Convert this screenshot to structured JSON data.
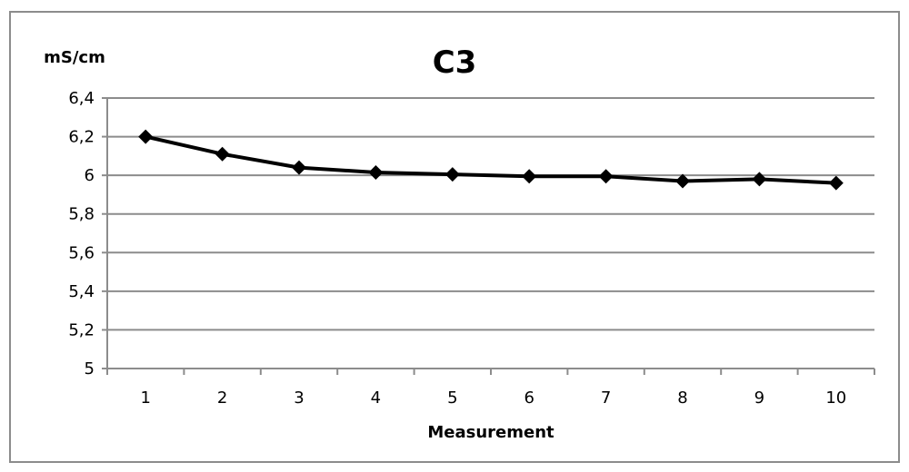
{
  "chart_data": {
    "type": "line",
    "title": "C3",
    "xlabel": "Measurement",
    "ylabel": "mS/cm",
    "categories": [
      "1",
      "2",
      "3",
      "4",
      "5",
      "6",
      "7",
      "8",
      "9",
      "10"
    ],
    "series": [
      {
        "values": [
          6.2,
          6.11,
          6.04,
          6.015,
          6.005,
          5.995,
          5.995,
          5.97,
          5.98,
          5.96
        ]
      }
    ],
    "ylim": [
      5,
      6.4
    ],
    "yticks": [
      "5",
      "5,2",
      "5,4",
      "5,6",
      "5,8",
      "6",
      "6,2",
      "6,4"
    ],
    "grid": true,
    "legend": "none",
    "line_color": "#000000",
    "grid_color": "#8c8c8c"
  }
}
